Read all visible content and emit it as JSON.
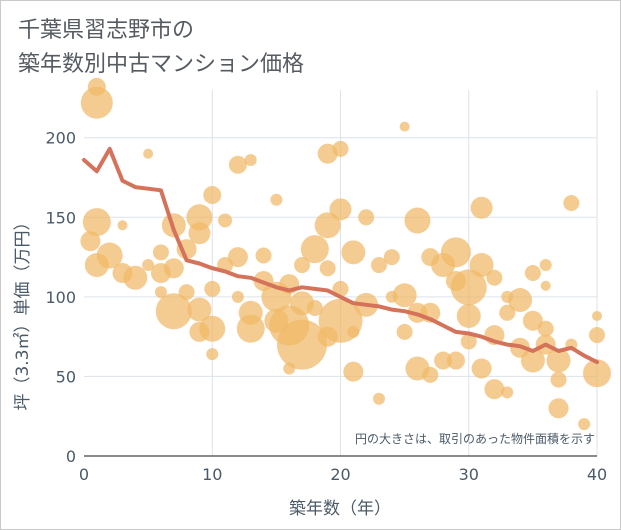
{
  "title_line1": "千葉県習志野市の",
  "title_line2": "築年数別中古マンション価格",
  "note": "円の大きさは、取引のあった物件面積を示す",
  "colors": {
    "bubble": "#f0b866",
    "line": "#d4725a",
    "grid": "#dbe3ea",
    "axis_text": "#4a5a68"
  },
  "chart_data": {
    "type": "scatter",
    "title": "千葉県習志野市の 築年数別中古マンション価格",
    "xlabel": "築年数（年）",
    "ylabel": "坪（3.3㎡）単価（万円）",
    "xlim": [
      0,
      40
    ],
    "ylim": [
      0,
      230
    ],
    "x_ticks": [
      0,
      10,
      20,
      30,
      40
    ],
    "y_ticks": [
      0,
      50,
      100,
      150,
      200
    ],
    "grid": true,
    "series": [
      {
        "kind": "line",
        "x": [
          0,
          1,
          2,
          3,
          4,
          5,
          6,
          7,
          8,
          9,
          10,
          11,
          12,
          13,
          14,
          15,
          16,
          17,
          18,
          19,
          20,
          21,
          22,
          23,
          24,
          25,
          26,
          27,
          28,
          29,
          30,
          31,
          32,
          33,
          34,
          35,
          36,
          37,
          38,
          39,
          40
        ],
        "values": [
          186,
          179,
          193,
          173,
          169,
          168,
          167,
          142,
          123,
          121,
          118,
          116,
          113,
          112,
          109,
          106,
          104,
          106,
          105,
          104,
          100,
          96,
          95,
          94,
          92,
          91,
          89,
          86,
          82,
          78,
          77,
          75,
          72,
          70,
          69,
          66,
          70,
          66,
          68,
          63,
          59
        ]
      },
      {
        "kind": "bubble",
        "points": [
          [
            1,
            222,
            16
          ],
          [
            1,
            232,
            9
          ],
          [
            1,
            147,
            14
          ],
          [
            0.5,
            135,
            10
          ],
          [
            1,
            120,
            12
          ],
          [
            2,
            126,
            13
          ],
          [
            3,
            145,
            5
          ],
          [
            3,
            115,
            10
          ],
          [
            4,
            112,
            12
          ],
          [
            5,
            190,
            5
          ],
          [
            5,
            120,
            6
          ],
          [
            6,
            128,
            8
          ],
          [
            6,
            115,
            10
          ],
          [
            6,
            103,
            6
          ],
          [
            7,
            91,
            18
          ],
          [
            7,
            118,
            10
          ],
          [
            7,
            145,
            12
          ],
          [
            8,
            130,
            10
          ],
          [
            8,
            103,
            8
          ],
          [
            9,
            150,
            13
          ],
          [
            9,
            140,
            11
          ],
          [
            9,
            92,
            12
          ],
          [
            9,
            78,
            10
          ],
          [
            10,
            80,
            13
          ],
          [
            10,
            105,
            8
          ],
          [
            10,
            164,
            9
          ],
          [
            10,
            64,
            6
          ],
          [
            11,
            148,
            7
          ],
          [
            11,
            120,
            8
          ],
          [
            12,
            183,
            9
          ],
          [
            12,
            125,
            10
          ],
          [
            12,
            100,
            6
          ],
          [
            13,
            186,
            6
          ],
          [
            13,
            90,
            12
          ],
          [
            13,
            80,
            14
          ],
          [
            14,
            126,
            8
          ],
          [
            14,
            110,
            10
          ],
          [
            15,
            100,
            15
          ],
          [
            15,
            85,
            12
          ],
          [
            15,
            161,
            6
          ],
          [
            16,
            82,
            20
          ],
          [
            16,
            108,
            10
          ],
          [
            16,
            55,
            6
          ],
          [
            17,
            70,
            25
          ],
          [
            17,
            120,
            8
          ],
          [
            17,
            96,
            12
          ],
          [
            18,
            130,
            14
          ],
          [
            18,
            93,
            8
          ],
          [
            19,
            190,
            10
          ],
          [
            19,
            145,
            13
          ],
          [
            19,
            118,
            8
          ],
          [
            19,
            75,
            10
          ],
          [
            20,
            193,
            8
          ],
          [
            20,
            155,
            11
          ],
          [
            20,
            85,
            22
          ],
          [
            20,
            105,
            8
          ],
          [
            21,
            128,
            12
          ],
          [
            21,
            78,
            6
          ],
          [
            21,
            53,
            10
          ],
          [
            22,
            150,
            8
          ],
          [
            22,
            95,
            12
          ],
          [
            23,
            120,
            8
          ],
          [
            23,
            36,
            6
          ],
          [
            24,
            125,
            8
          ],
          [
            24,
            100,
            6
          ],
          [
            25,
            207,
            5
          ],
          [
            25,
            101,
            12
          ],
          [
            25,
            78,
            8
          ],
          [
            26,
            148,
            13
          ],
          [
            26,
            90,
            10
          ],
          [
            26,
            55,
            12
          ],
          [
            27,
            125,
            9
          ],
          [
            27,
            90,
            10
          ],
          [
            27,
            51,
            8
          ],
          [
            28,
            120,
            12
          ],
          [
            28,
            60,
            9
          ],
          [
            29,
            128,
            15
          ],
          [
            29,
            110,
            10
          ],
          [
            29,
            60,
            9
          ],
          [
            30,
            106,
            18
          ],
          [
            30,
            88,
            12
          ],
          [
            30,
            72,
            8
          ],
          [
            31,
            156,
            11
          ],
          [
            31,
            120,
            12
          ],
          [
            31,
            55,
            10
          ],
          [
            32,
            112,
            8
          ],
          [
            32,
            76,
            10
          ],
          [
            32,
            42,
            10
          ],
          [
            33,
            100,
            6
          ],
          [
            33,
            90,
            8
          ],
          [
            33,
            40,
            6
          ],
          [
            34,
            98,
            12
          ],
          [
            34,
            68,
            10
          ],
          [
            35,
            115,
            8
          ],
          [
            35,
            85,
            10
          ],
          [
            35,
            60,
            12
          ],
          [
            36,
            120,
            6
          ],
          [
            36,
            107,
            5
          ],
          [
            36,
            80,
            8
          ],
          [
            36,
            70,
            10
          ],
          [
            37,
            60,
            12
          ],
          [
            37,
            48,
            8
          ],
          [
            37,
            30,
            10
          ],
          [
            38,
            159,
            8
          ],
          [
            38,
            70,
            6
          ],
          [
            39,
            20,
            6
          ],
          [
            40,
            88,
            5
          ],
          [
            40,
            76,
            8
          ],
          [
            40,
            52,
            14
          ]
        ]
      }
    ]
  }
}
